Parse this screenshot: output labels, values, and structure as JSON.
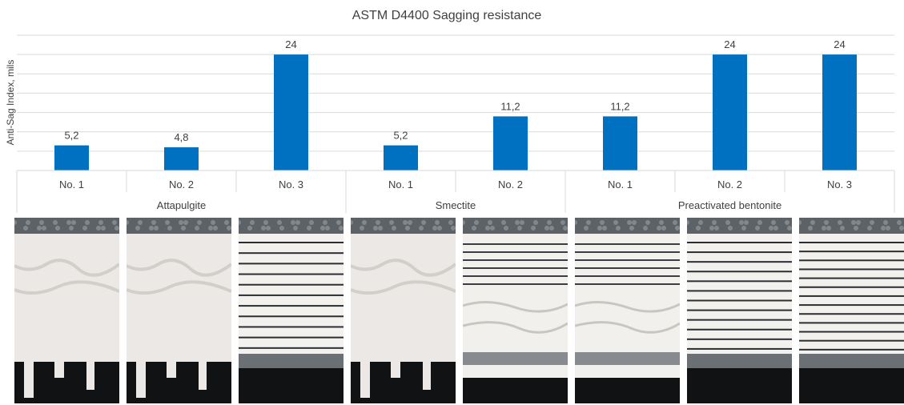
{
  "chart_data": {
    "type": "bar",
    "title": "ASTM D4400 Sagging resistance",
    "xlabel": "",
    "ylabel": "Anti-Sag Index, mils",
    "ylim": [
      0,
      28
    ],
    "grid": true,
    "bar_color": "#0070C0",
    "groups": [
      {
        "name": "Attapulgite",
        "categories": [
          "No. 1",
          "No. 2",
          "No. 3"
        ],
        "values": [
          5.2,
          4.8,
          24
        ],
        "labels": [
          "5,2",
          "4,8",
          "24"
        ]
      },
      {
        "name": "Smectite",
        "categories": [
          "No. 1",
          "No. 2"
        ],
        "values": [
          5.2,
          11.2
        ],
        "labels": [
          "5,2",
          "11,2"
        ]
      },
      {
        "name": "Preactivated bentonite",
        "categories": [
          "No. 1",
          "No. 2",
          "No. 3"
        ],
        "values": [
          11.2,
          24,
          24
        ],
        "labels": [
          "11,2",
          "24",
          "24"
        ]
      }
    ]
  },
  "photos": [
    {
      "kind": "sag",
      "level": 0.85
    },
    {
      "kind": "sag",
      "level": 0.9
    },
    {
      "kind": "lines",
      "count": 11
    },
    {
      "kind": "sag",
      "level": 0.95
    },
    {
      "kind": "wave",
      "count": 6
    },
    {
      "kind": "wave",
      "count": 6
    },
    {
      "kind": "lines",
      "count": 12
    },
    {
      "kind": "lines",
      "count": 13
    }
  ]
}
